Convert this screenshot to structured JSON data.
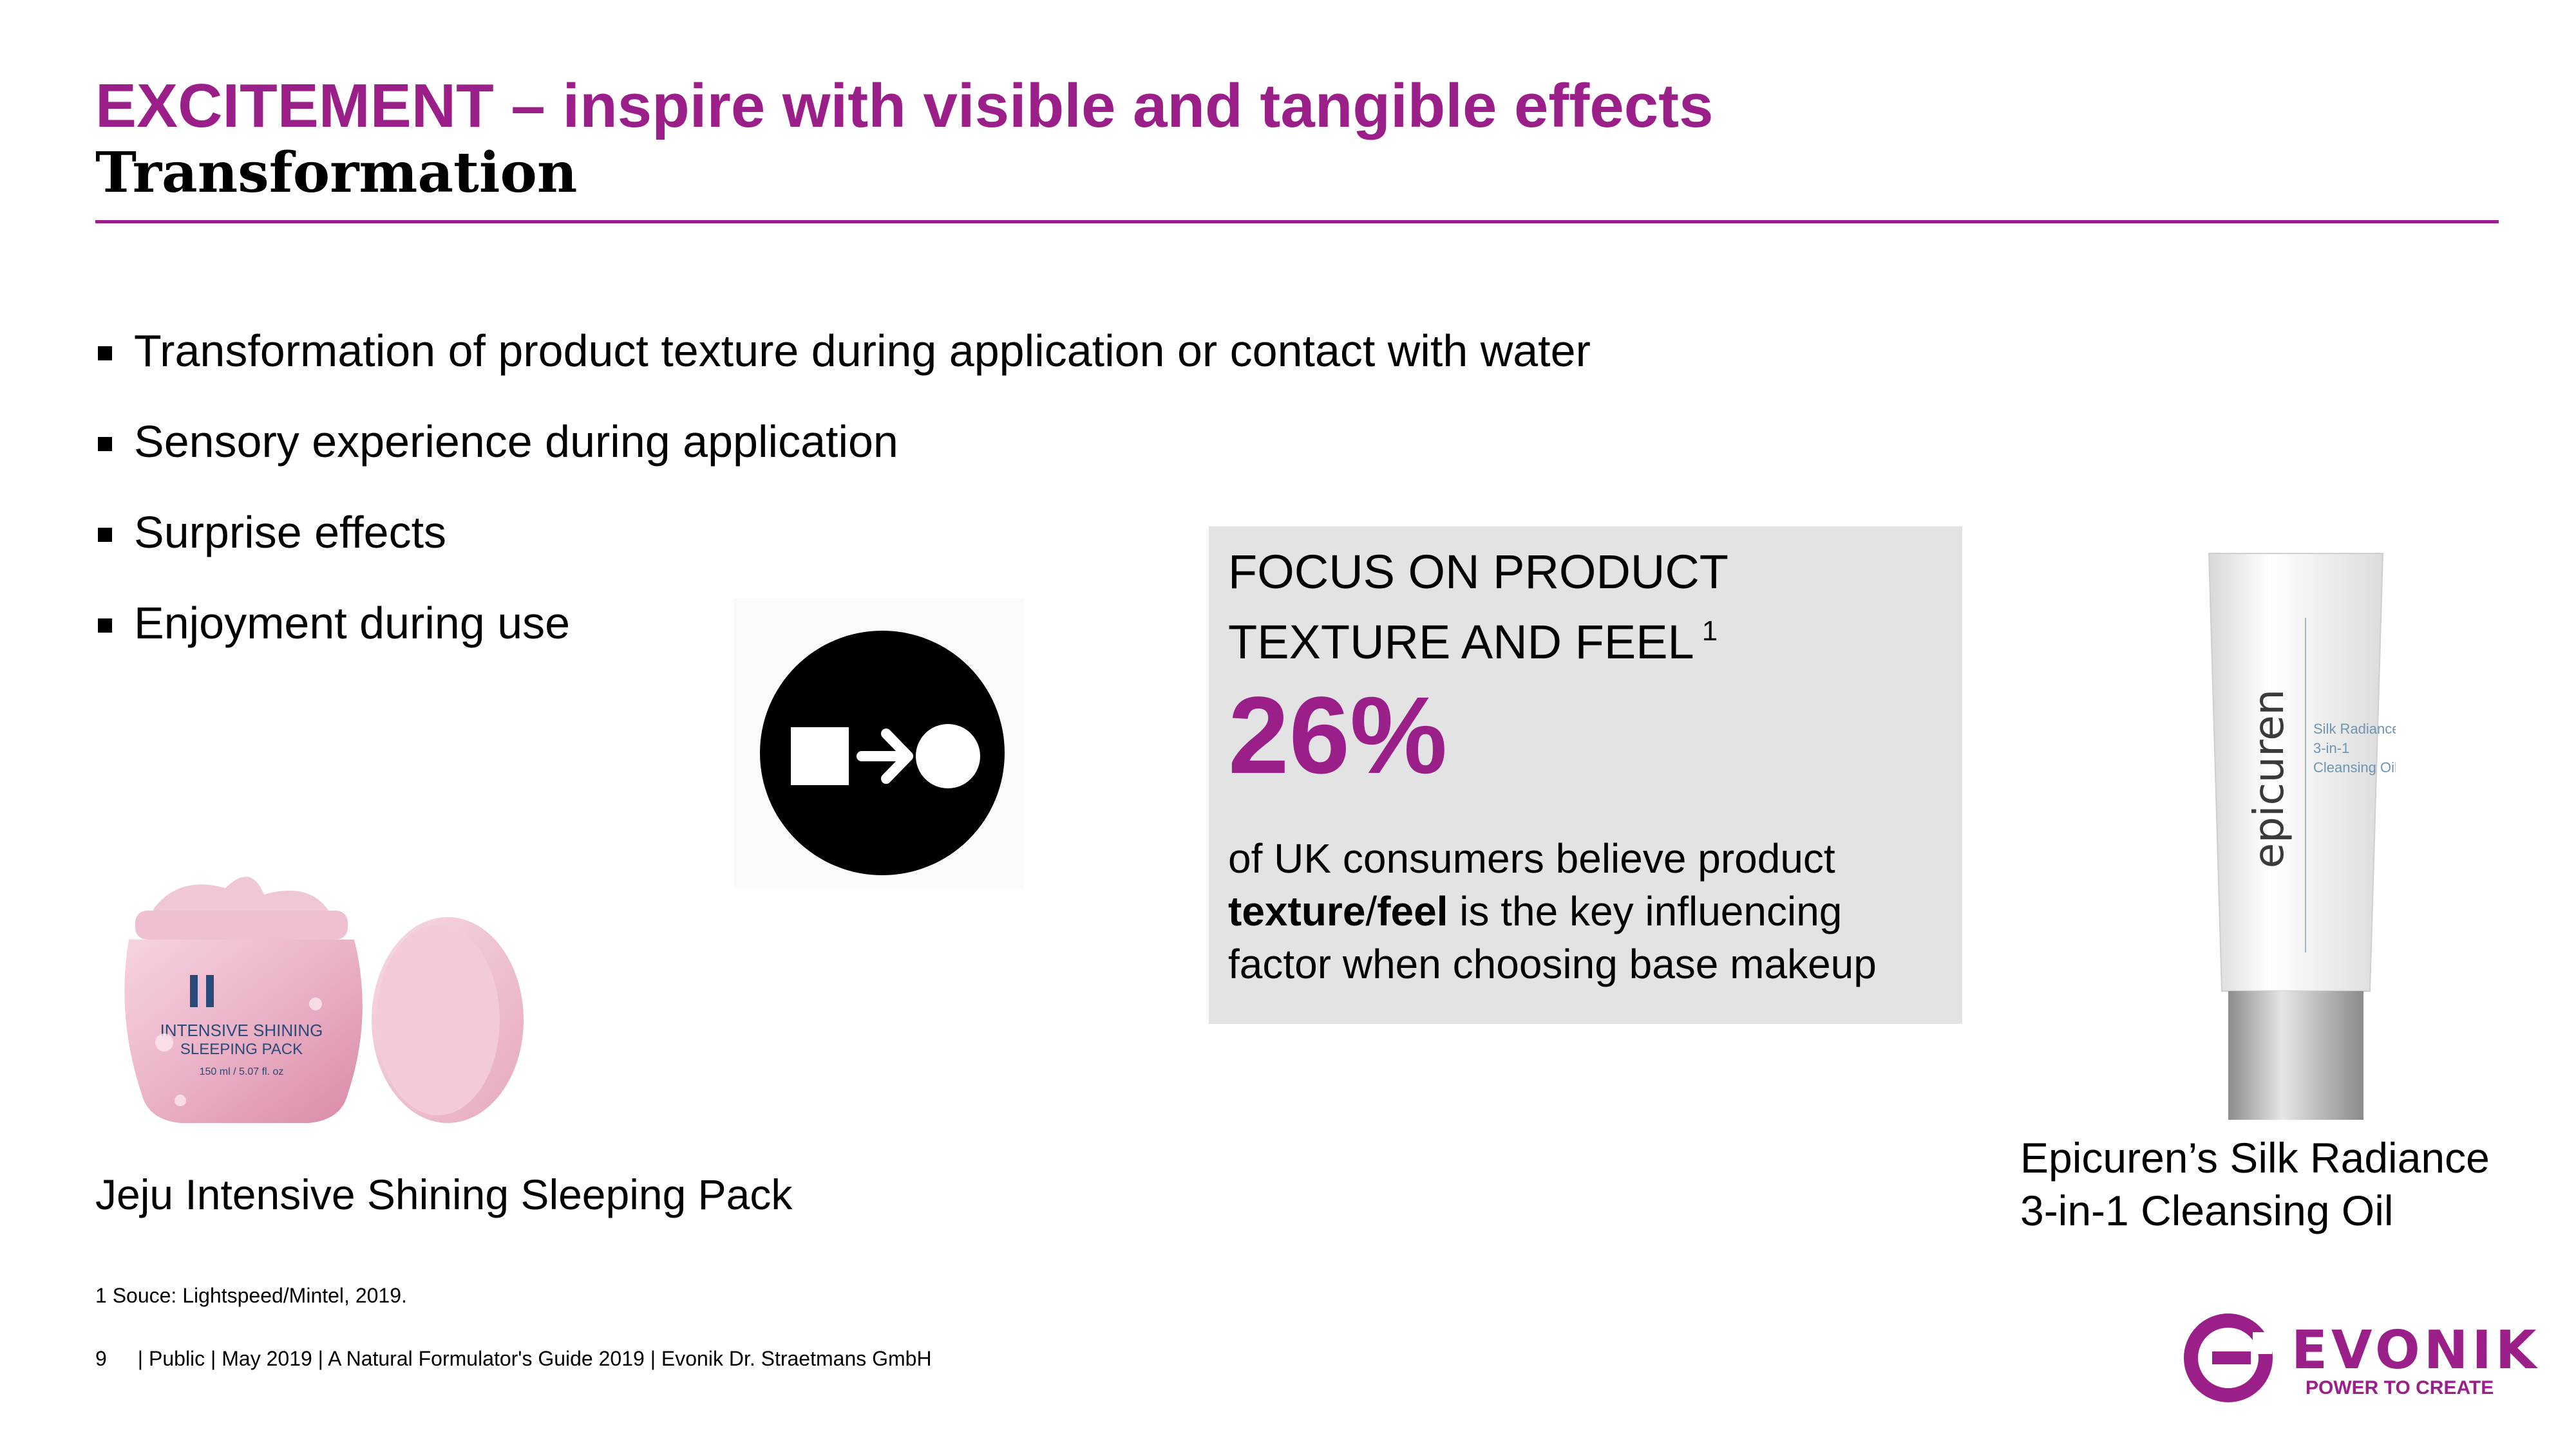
{
  "header": {
    "title": "EXCITEMENT – inspire with visible and tangible effects",
    "subtitle": "Transformation"
  },
  "bullets": [
    "Transformation of product texture during application or contact with water",
    "Sensory experience during application",
    "Surprise effects",
    "Enjoyment during use"
  ],
  "icon": {
    "name": "square-to-circle-transformation-icon"
  },
  "focus_box": {
    "heading_line1": "FOCUS ON PRODUCT",
    "heading_line2": "TEXTURE AND FEEL",
    "footnote_ref": "1",
    "statistic": "26%",
    "body_line1": "of UK consumers believe product",
    "body_bold1": "texture",
    "body_slash": "/",
    "body_bold2": "feel",
    "body_line2_rest": " is the key influencing",
    "body_line3": "factor when choosing base makeup"
  },
  "products": {
    "left": {
      "jar_text_line1": "INTENSIVE SHINING",
      "jar_text_line2": "SLEEPING PACK",
      "jar_volume": "150 ml / 5.07 fl. oz",
      "caption": "Jeju Intensive Shining Sleeping Pack"
    },
    "right": {
      "tube_brand": "epicuren",
      "tube_line1": "Silk Radiance",
      "tube_line2": "3-in-1",
      "tube_line3": "Cleansing Oil",
      "caption_line1": "Epicuren’s Silk Radiance",
      "caption_line2": "3-in-1 Cleansing Oil"
    }
  },
  "footnote": "1 Souce: Lightspeed/Mintel, 2019.",
  "footer": {
    "page_number": "9",
    "text": "|  Public  |  May  2019  |  A Natural Formulator's Guide 2019  |  Evonik Dr. Straetmans GmbH"
  },
  "logo": {
    "wordmark": "EVONIK",
    "tagline": "POWER TO CREATE"
  },
  "colors": {
    "accent": "#9b1f88",
    "box_background": "#e3e3e3"
  }
}
